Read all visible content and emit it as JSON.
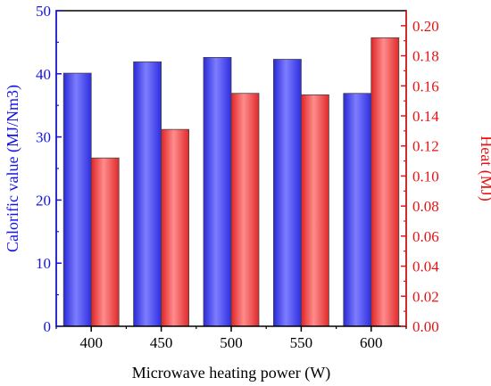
{
  "chart_data": {
    "type": "bar",
    "xlabel": "Microwave heating power (W)",
    "categories": [
      "400",
      "450",
      "500",
      "550",
      "600"
    ],
    "series": [
      {
        "axis": "left",
        "color": "#3f3fff",
        "values": [
          40.1,
          41.9,
          42.6,
          42.3,
          36.9
        ]
      },
      {
        "axis": "right",
        "color": "#ff4040",
        "values": [
          0.112,
          0.131,
          0.155,
          0.154,
          0.192
        ]
      }
    ],
    "y_left": {
      "label": "Calorific value (MJ/Nm3)",
      "color": "#1414e6",
      "ylim": [
        0,
        50
      ],
      "ticks": [
        "0",
        "10",
        "20",
        "30",
        "40",
        "50"
      ]
    },
    "y_right": {
      "label": "Heat (MJ)",
      "color": "#e61414",
      "ylim": [
        0,
        0.21
      ],
      "ticks": [
        "0.00",
        "0.02",
        "0.04",
        "0.06",
        "0.08",
        "0.10",
        "0.12",
        "0.14",
        "0.16",
        "0.18",
        "0.20"
      ]
    },
    "grid": false,
    "legend": "none"
  }
}
